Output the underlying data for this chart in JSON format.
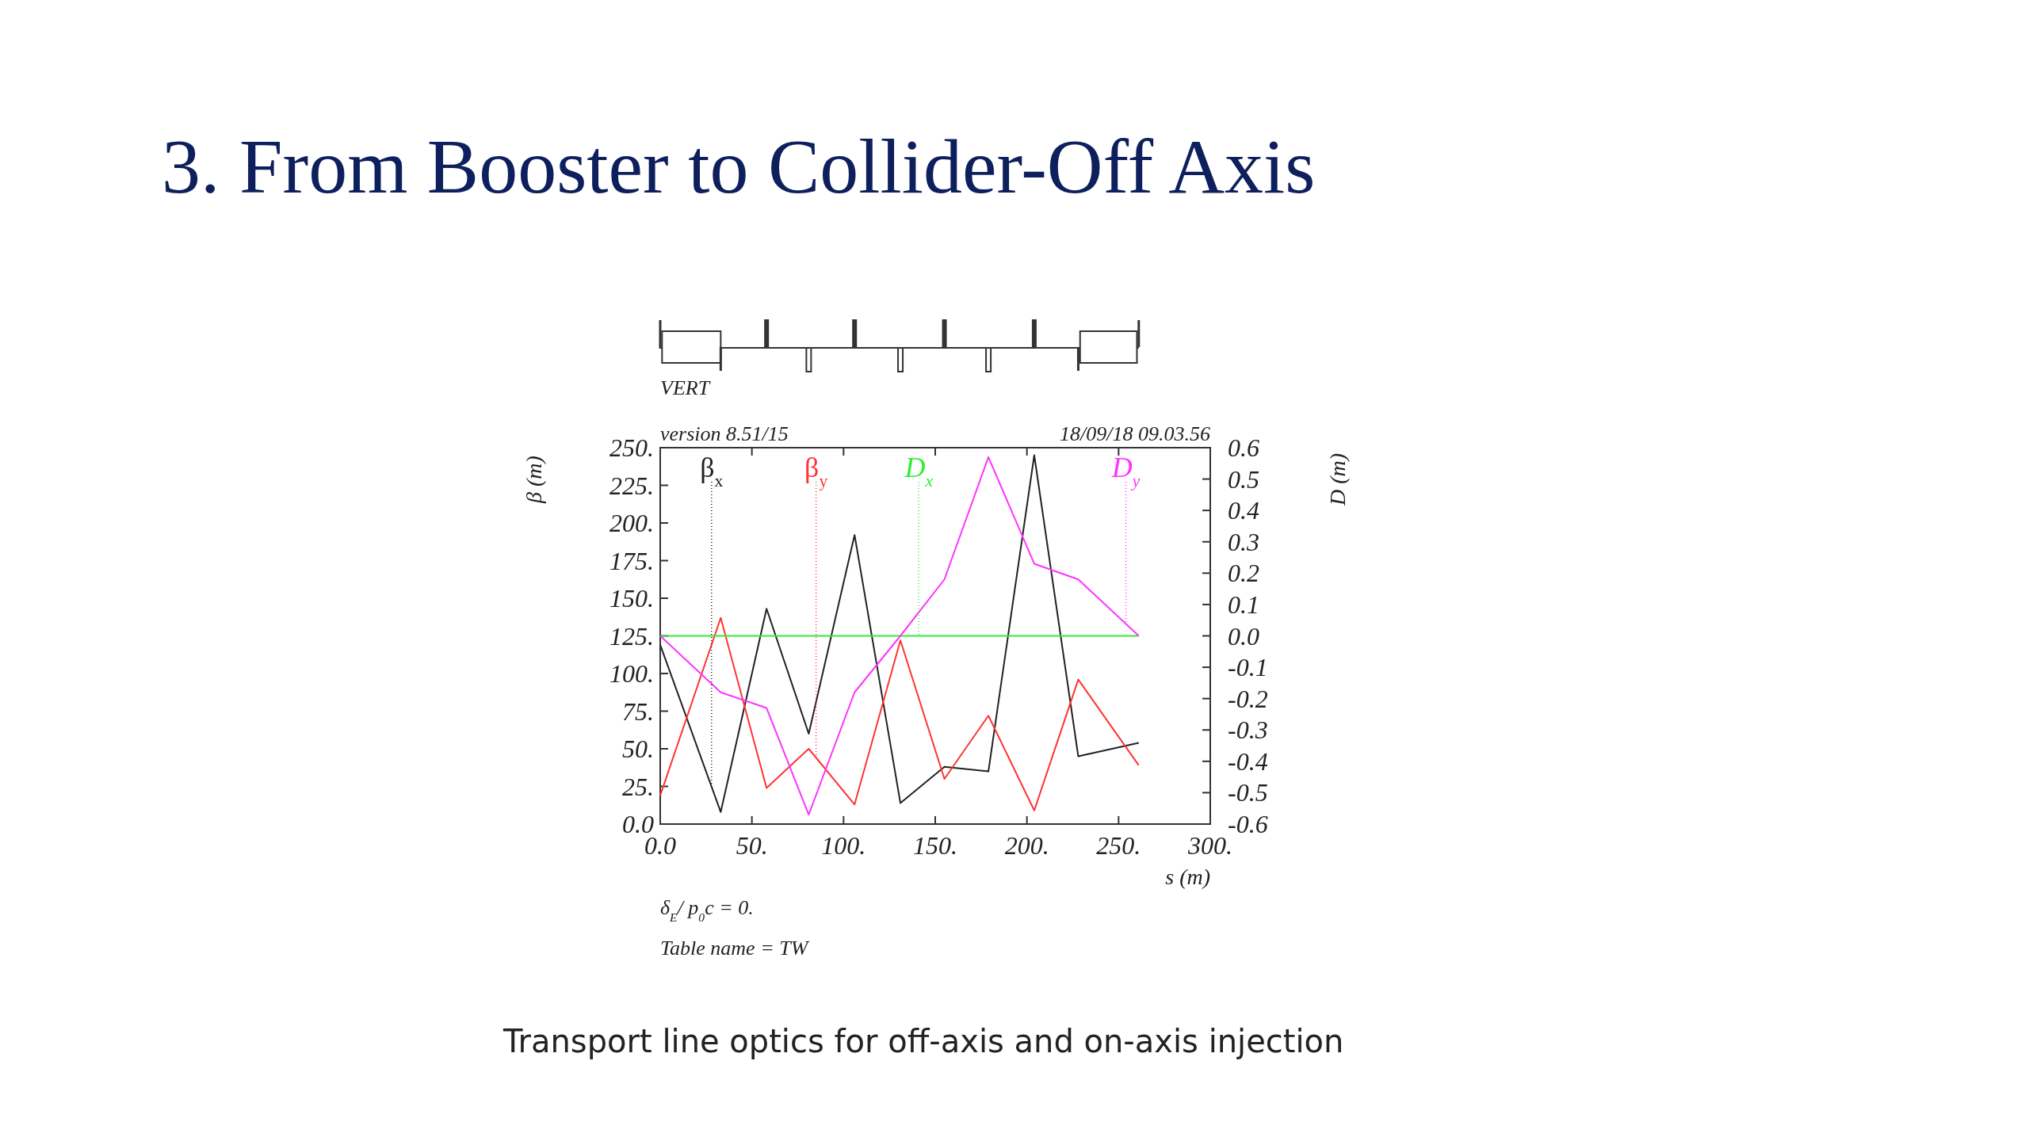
{
  "chart_data": {
    "type": "line",
    "title": "3. From Booster to Collider-Off Axis",
    "xlabel": "s (m)",
    "ylabel": "β (m)",
    "y2label": "D (m)",
    "xlim": [
      0,
      300
    ],
    "xticks": [
      {
        "value": 0,
        "label": "0.0"
      },
      {
        "value": 50,
        "label": "50."
      },
      {
        "value": 100,
        "label": "100."
      },
      {
        "value": 150,
        "label": "150."
      },
      {
        "value": 200,
        "label": "200."
      },
      {
        "value": 250,
        "label": "250."
      },
      {
        "value": 300,
        "label": "300."
      }
    ],
    "ylim": [
      0,
      250
    ],
    "yticks": [
      {
        "value": 0,
        "label": "0.0"
      },
      {
        "value": 25,
        "label": "25."
      },
      {
        "value": 50,
        "label": "50."
      },
      {
        "value": 75,
        "label": "75."
      },
      {
        "value": 100,
        "label": "100."
      },
      {
        "value": 125,
        "label": "125."
      },
      {
        "value": 150,
        "label": "150."
      },
      {
        "value": 175,
        "label": "175."
      },
      {
        "value": 200,
        "label": "200."
      },
      {
        "value": 225,
        "label": "225."
      },
      {
        "value": 250,
        "label": "250."
      }
    ],
    "y2lim": [
      -0.6,
      0.6
    ],
    "y2ticks": [
      -0.6,
      -0.5,
      -0.4,
      -0.3,
      -0.2,
      -0.1,
      {
        "value": 0,
        "label": "0.0"
      },
      0.1,
      0.2,
      0.3,
      0.4,
      0.5,
      0.6
    ],
    "series": [
      {
        "name": "β$_{x}$",
        "color": "#222222",
        "x": [
          0,
          33,
          58,
          81,
          106,
          131,
          155,
          179,
          204,
          228,
          261
        ],
        "values": [
          119,
          8,
          143,
          60,
          192,
          14,
          38,
          35,
          245,
          45,
          54
        ]
      },
      {
        "name": "β$_{y}$",
        "color": "#ff3333",
        "x": [
          0,
          33,
          58,
          81,
          106,
          131,
          155,
          179,
          204,
          228,
          261
        ],
        "values": [
          19,
          137,
          24,
          50,
          13,
          122,
          30,
          72,
          9,
          96,
          39
        ]
      },
      {
        "name": "D$_{x}$",
        "color": "#33ee33",
        "axis": "y2",
        "x": [
          0,
          261
        ],
        "values": [
          0,
          0
        ]
      },
      {
        "name": "D$_{y}$",
        "color": "#ff33ff",
        "axis": "y2",
        "x": [
          0,
          33,
          58,
          81,
          106,
          131,
          155,
          179,
          204,
          228,
          261
        ],
        "values": [
          0,
          -0.18,
          -0.23,
          -0.57,
          -0.18,
          0,
          0.18,
          0.57,
          0.23,
          0.18,
          0
        ]
      }
    ],
    "annotations": [
      "VERT",
      "version 8.51/15",
      "18/09/18  09.03.56",
      "δ$_{E}$/ p$_{0}$c  =  0.",
      "Table name = TW",
      "Transport line optics for off-axis and on-axis injection"
    ],
    "ref_lines": [
      {
        "axis": "x",
        "value": 28,
        "color": "#222222",
        "line_style": "dotted"
      },
      {
        "axis": "x",
        "value": 85,
        "color": "#ff3333",
        "line_style": "dotted"
      },
      {
        "axis": "x",
        "value": 141,
        "color": "#33ee33",
        "line_style": "dotted"
      },
      {
        "axis": "x",
        "value": 254,
        "color": "#ff33ff",
        "line_style": "dotted"
      }
    ],
    "grid": false,
    "marker": "none",
    "line_style": "solid"
  }
}
